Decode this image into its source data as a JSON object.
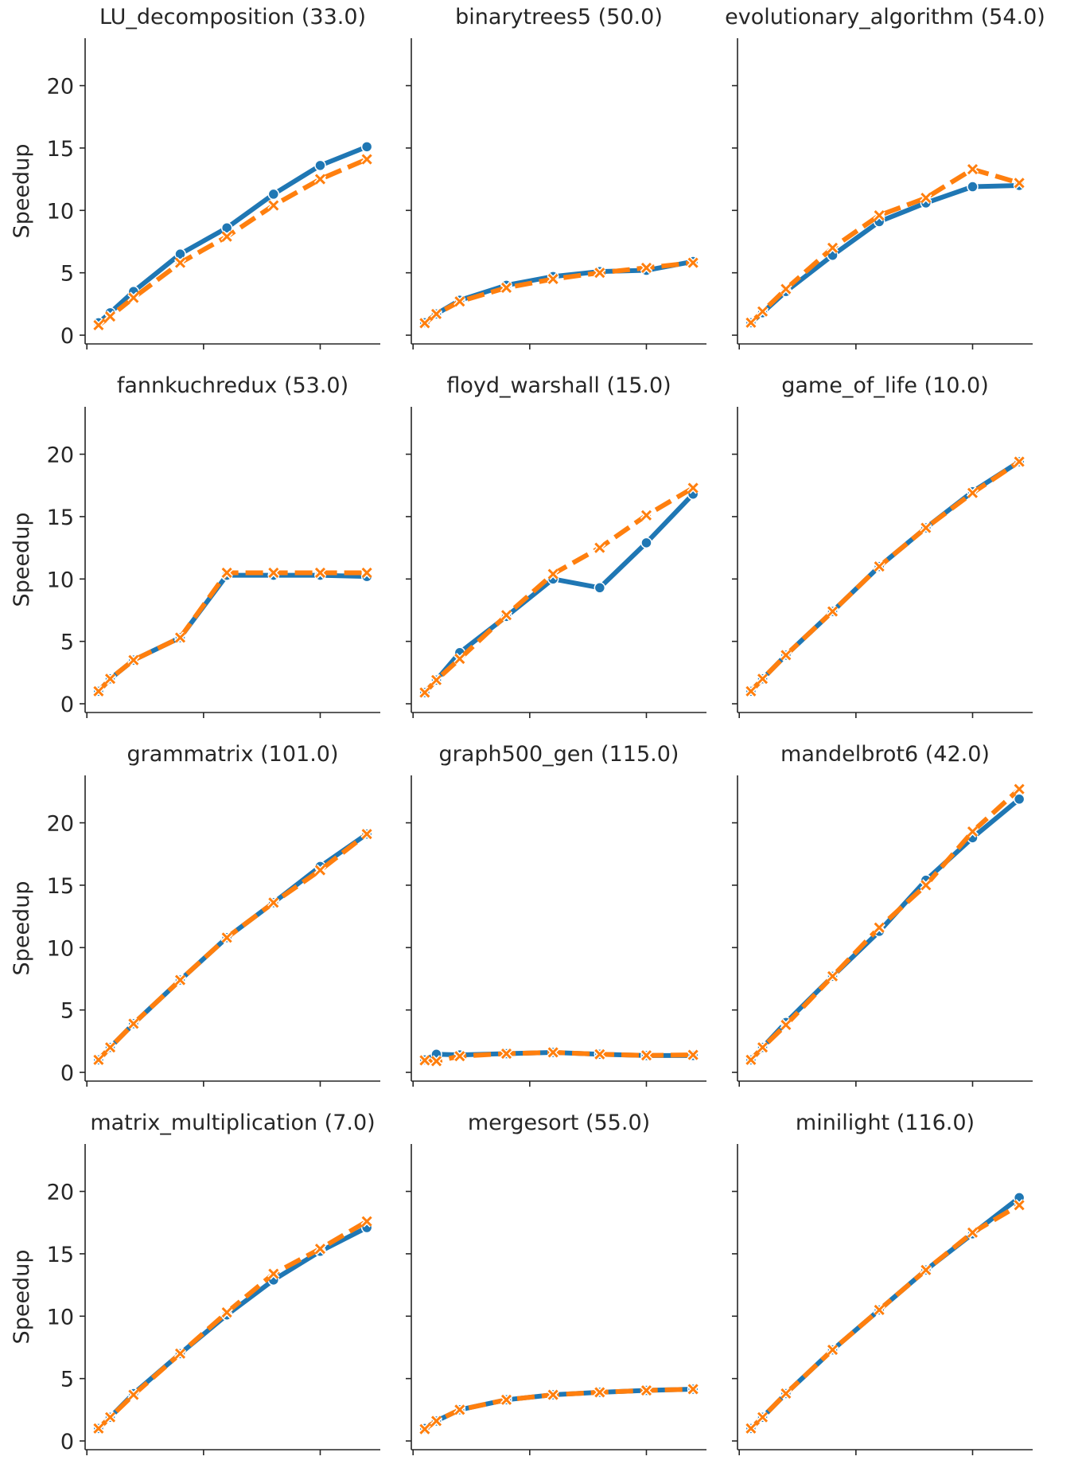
{
  "chart_data": {
    "type": "line",
    "layout": "3x4 facet grid, shared axes",
    "ylabel": "Speedup",
    "xlabel": "",
    "x": [
      1,
      2,
      4,
      8,
      12,
      16,
      20,
      24
    ],
    "xticks": [
      0,
      10,
      20
    ],
    "xtick_labels_shown": false,
    "xlim": [
      -0.15,
      25.15
    ],
    "yticks": [
      0,
      5,
      10,
      15,
      20
    ],
    "ylim": [
      -0.7,
      23.8
    ],
    "grid": false,
    "legend": "none",
    "series_styles": [
      {
        "color": "#1f77b4",
        "marker": "circle",
        "dash": "solid"
      },
      {
        "color": "#ff7f0e",
        "marker": "x",
        "dash": "dashed"
      }
    ],
    "panels": [
      {
        "title": "LU_decomposition (33.0)",
        "series": [
          {
            "values": [
              1.0,
              1.8,
              3.5,
              6.5,
              8.6,
              11.3,
              13.6,
              15.1
            ]
          },
          {
            "values": [
              0.8,
              1.5,
              3.0,
              5.8,
              7.9,
              10.4,
              12.5,
              14.1
            ]
          }
        ]
      },
      {
        "title": "binarytrees5 (50.0)",
        "series": [
          {
            "values": [
              1.0,
              1.7,
              2.8,
              4.0,
              4.7,
              5.1,
              5.2,
              5.9
            ]
          },
          {
            "values": [
              0.96,
              1.7,
              2.7,
              3.8,
              4.5,
              5.0,
              5.4,
              5.8
            ]
          }
        ]
      },
      {
        "title": "evolutionary_algorithm (54.0)",
        "series": [
          {
            "values": [
              1.0,
              1.8,
              3.5,
              6.4,
              9.1,
              10.6,
              11.9,
              12.0
            ]
          },
          {
            "values": [
              1.0,
              1.9,
              3.7,
              7.0,
              9.6,
              11.0,
              13.3,
              12.2
            ]
          }
        ]
      },
      {
        "title": "fannkuchredux (53.0)",
        "series": [
          {
            "values": [
              1.0,
              2.0,
              3.5,
              5.3,
              10.3,
              10.3,
              10.3,
              10.2
            ]
          },
          {
            "values": [
              1.0,
              2.0,
              3.5,
              5.3,
              10.5,
              10.5,
              10.5,
              10.5
            ]
          }
        ]
      },
      {
        "title": "floyd_warshall (15.0)",
        "series": [
          {
            "values": [
              0.9,
              1.9,
              4.1,
              7.0,
              10.0,
              9.3,
              12.9,
              16.8
            ]
          },
          {
            "values": [
              0.9,
              1.9,
              3.6,
              7.1,
              10.4,
              12.5,
              15.1,
              17.3
            ]
          }
        ]
      },
      {
        "title": "game_of_life (10.0)",
        "series": [
          {
            "values": [
              1.0,
              2.0,
              3.9,
              7.4,
              11.0,
              14.1,
              17.0,
              19.4
            ]
          },
          {
            "values": [
              1.0,
              2.0,
              3.9,
              7.4,
              11.0,
              14.1,
              16.9,
              19.4
            ]
          }
        ]
      },
      {
        "title": "grammatrix (101.0)",
        "series": [
          {
            "values": [
              1.0,
              2.0,
              3.9,
              7.4,
              10.8,
              13.6,
              16.5,
              19.1
            ]
          },
          {
            "values": [
              1.0,
              2.0,
              3.9,
              7.4,
              10.8,
              13.6,
              16.2,
              19.1
            ]
          }
        ]
      },
      {
        "title": "graph500_gen (115.0)",
        "series": [
          {
            "values": [
              1.0,
              1.45,
              1.4,
              1.5,
              1.6,
              1.45,
              1.35,
              1.35
            ]
          },
          {
            "values": [
              0.96,
              0.9,
              1.3,
              1.5,
              1.6,
              1.45,
              1.36,
              1.4
            ]
          }
        ]
      },
      {
        "title": "mandelbrot6 (42.0)",
        "series": [
          {
            "values": [
              1.0,
              2.0,
              4.0,
              7.7,
              11.3,
              15.4,
              18.8,
              21.9
            ]
          },
          {
            "values": [
              1.0,
              2.0,
              3.8,
              7.7,
              11.6,
              15.0,
              19.3,
              22.7
            ]
          }
        ]
      },
      {
        "title": "matrix_multiplication (7.0)",
        "series": [
          {
            "values": [
              1.0,
              1.9,
              3.8,
              7.0,
              10.1,
              12.9,
              15.2,
              17.1
            ]
          },
          {
            "values": [
              1.0,
              1.9,
              3.7,
              7.0,
              10.3,
              13.4,
              15.4,
              17.6
            ]
          }
        ]
      },
      {
        "title": "mergesort (55.0)",
        "series": [
          {
            "values": [
              1.0,
              1.6,
              2.5,
              3.3,
              3.7,
              3.9,
              4.05,
              4.15
            ]
          },
          {
            "values": [
              0.95,
              1.6,
              2.5,
              3.3,
              3.7,
              3.9,
              4.05,
              4.15
            ]
          }
        ]
      },
      {
        "title": "minilight (116.0)",
        "series": [
          {
            "values": [
              1.0,
              1.9,
              3.8,
              7.3,
              10.5,
              13.7,
              16.6,
              19.5
            ]
          },
          {
            "values": [
              1.0,
              1.9,
              3.8,
              7.3,
              10.5,
              13.7,
              16.7,
              18.9
            ]
          }
        ]
      }
    ]
  }
}
